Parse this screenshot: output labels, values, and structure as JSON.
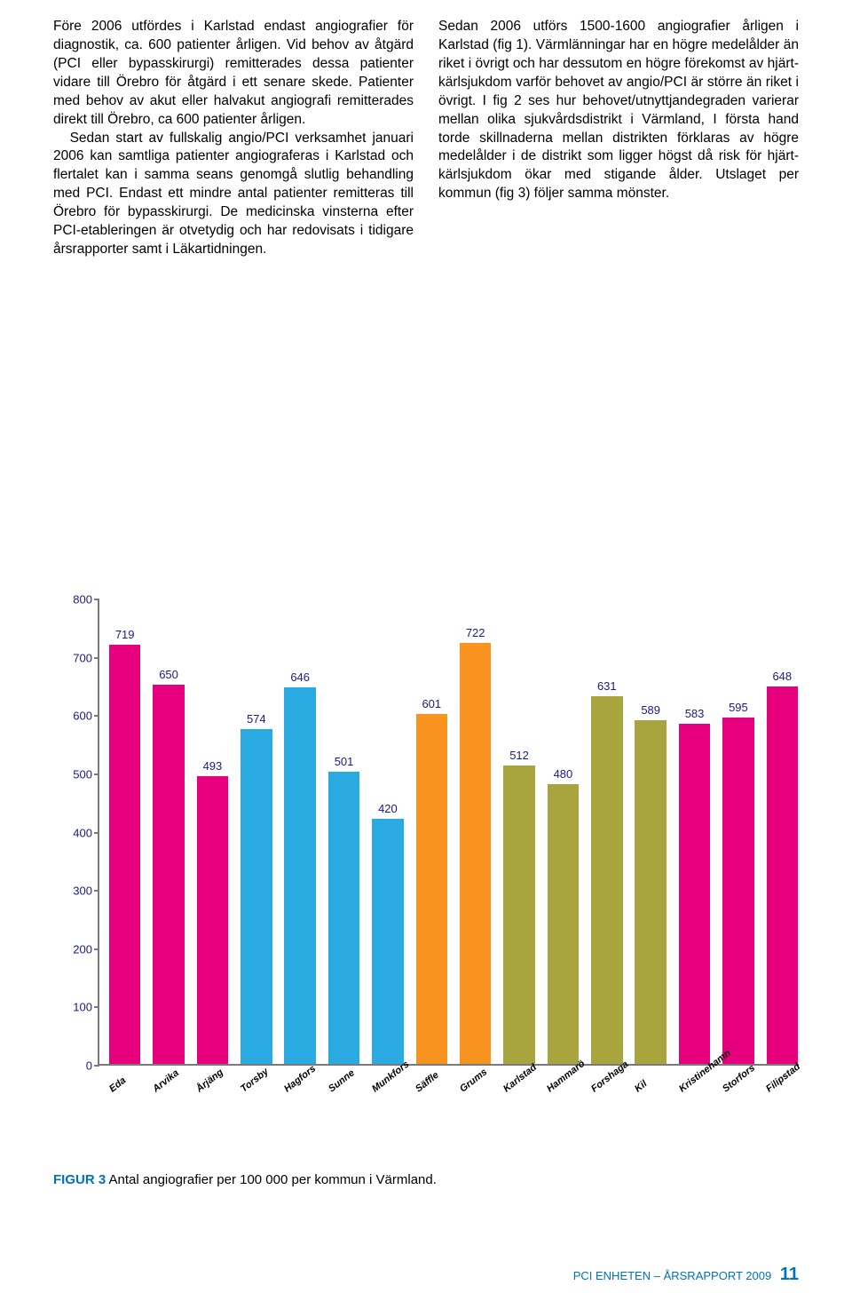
{
  "text": {
    "col1_p1": "Före 2006 utfördes i Karlstad endast angiografier för diagnostik, ca. 600 patienter årligen. Vid behov av åtgärd (PCI eller bypasskirurgi) remitterades dessa patienter vidare till Örebro för åtgärd i ett senare skede. Patienter med behov av akut eller halvakut angiografi remitterades direkt till Örebro, ca 600 patienter årligen.",
    "col1_p2": "Sedan start av fullskalig angio/PCI verksamhet januari 2006 kan samtliga patienter angiograferas i Karlstad och flertalet kan i samma seans genomgå slutlig behandling med PCI. Endast ett mindre antal patienter remitteras till Örebro för bypasskirurgi. De medicinska vinsterna efter PCI-etableringen är otvetydig och har redovisats i tidigare årsrapporter samt i Läkartidningen.",
    "col2_p1": "Sedan 2006 utförs 1500-1600 angiografier årligen i Karlstad (fig 1). Värmlänningar har en högre medelålder än riket i övrigt och har dessutom en högre förekomst av hjärt-kärlsjukdom varför behovet av angio/PCI är större än riket i övrigt. I fig 2 ses hur behovet/utnyttjandegraden varierar mellan olika sjukvårdsdistrikt i Värmland, I första hand torde skillnaderna mellan distrikten förklaras av högre medelålder i de distrikt som ligger högst då risk för hjärt-kärlsjukdom ökar med stigande ålder. Utslaget per kommun (fig 3) följer samma mönster."
  },
  "chart": {
    "type": "bar",
    "ylim": [
      0,
      800
    ],
    "ytick_step": 100,
    "yticks": [
      0,
      100,
      200,
      300,
      400,
      500,
      600,
      700,
      800
    ],
    "axis_color": "#7a7a7a",
    "tick_label_color": "#1a1a8a",
    "bar_width_ratio": 0.72,
    "colors": {
      "pink": "#e6007e",
      "blue": "#29abe2",
      "orange": "#f7931e",
      "olive": "#a8a53f"
    },
    "bars": [
      {
        "label": "Eda",
        "value": 719,
        "color": "pink"
      },
      {
        "label": "Arvika",
        "value": 650,
        "color": "pink"
      },
      {
        "label": "Årjäng",
        "value": 493,
        "color": "pink"
      },
      {
        "label": "Torsby",
        "value": 574,
        "color": "blue"
      },
      {
        "label": "Hagfors",
        "value": 646,
        "color": "blue"
      },
      {
        "label": "Sunne",
        "value": 501,
        "color": "blue"
      },
      {
        "label": "Munkfors",
        "value": 420,
        "color": "blue"
      },
      {
        "label": "Säffle",
        "value": 601,
        "color": "orange"
      },
      {
        "label": "Grums",
        "value": 722,
        "color": "orange"
      },
      {
        "label": "Karlstad",
        "value": 512,
        "color": "olive"
      },
      {
        "label": "Hammarö",
        "value": 480,
        "color": "olive"
      },
      {
        "label": "Forshaga",
        "value": 631,
        "color": "olive"
      },
      {
        "label": "Kil",
        "value": 589,
        "color": "olive"
      },
      {
        "label": "Kristinehamn",
        "value": 583,
        "color": "pink"
      },
      {
        "label": "Storfors",
        "value": 595,
        "color": "pink"
      },
      {
        "label": "Filipstad",
        "value": 648,
        "color": "pink"
      }
    ]
  },
  "caption": {
    "label": "FIGUR 3",
    "text": " Antal angiografier per 100 000 per kommun i Värmland."
  },
  "footer": {
    "text": "PCI ENHETEN – ÅRSRAPPORT 2009",
    "page": "11"
  }
}
